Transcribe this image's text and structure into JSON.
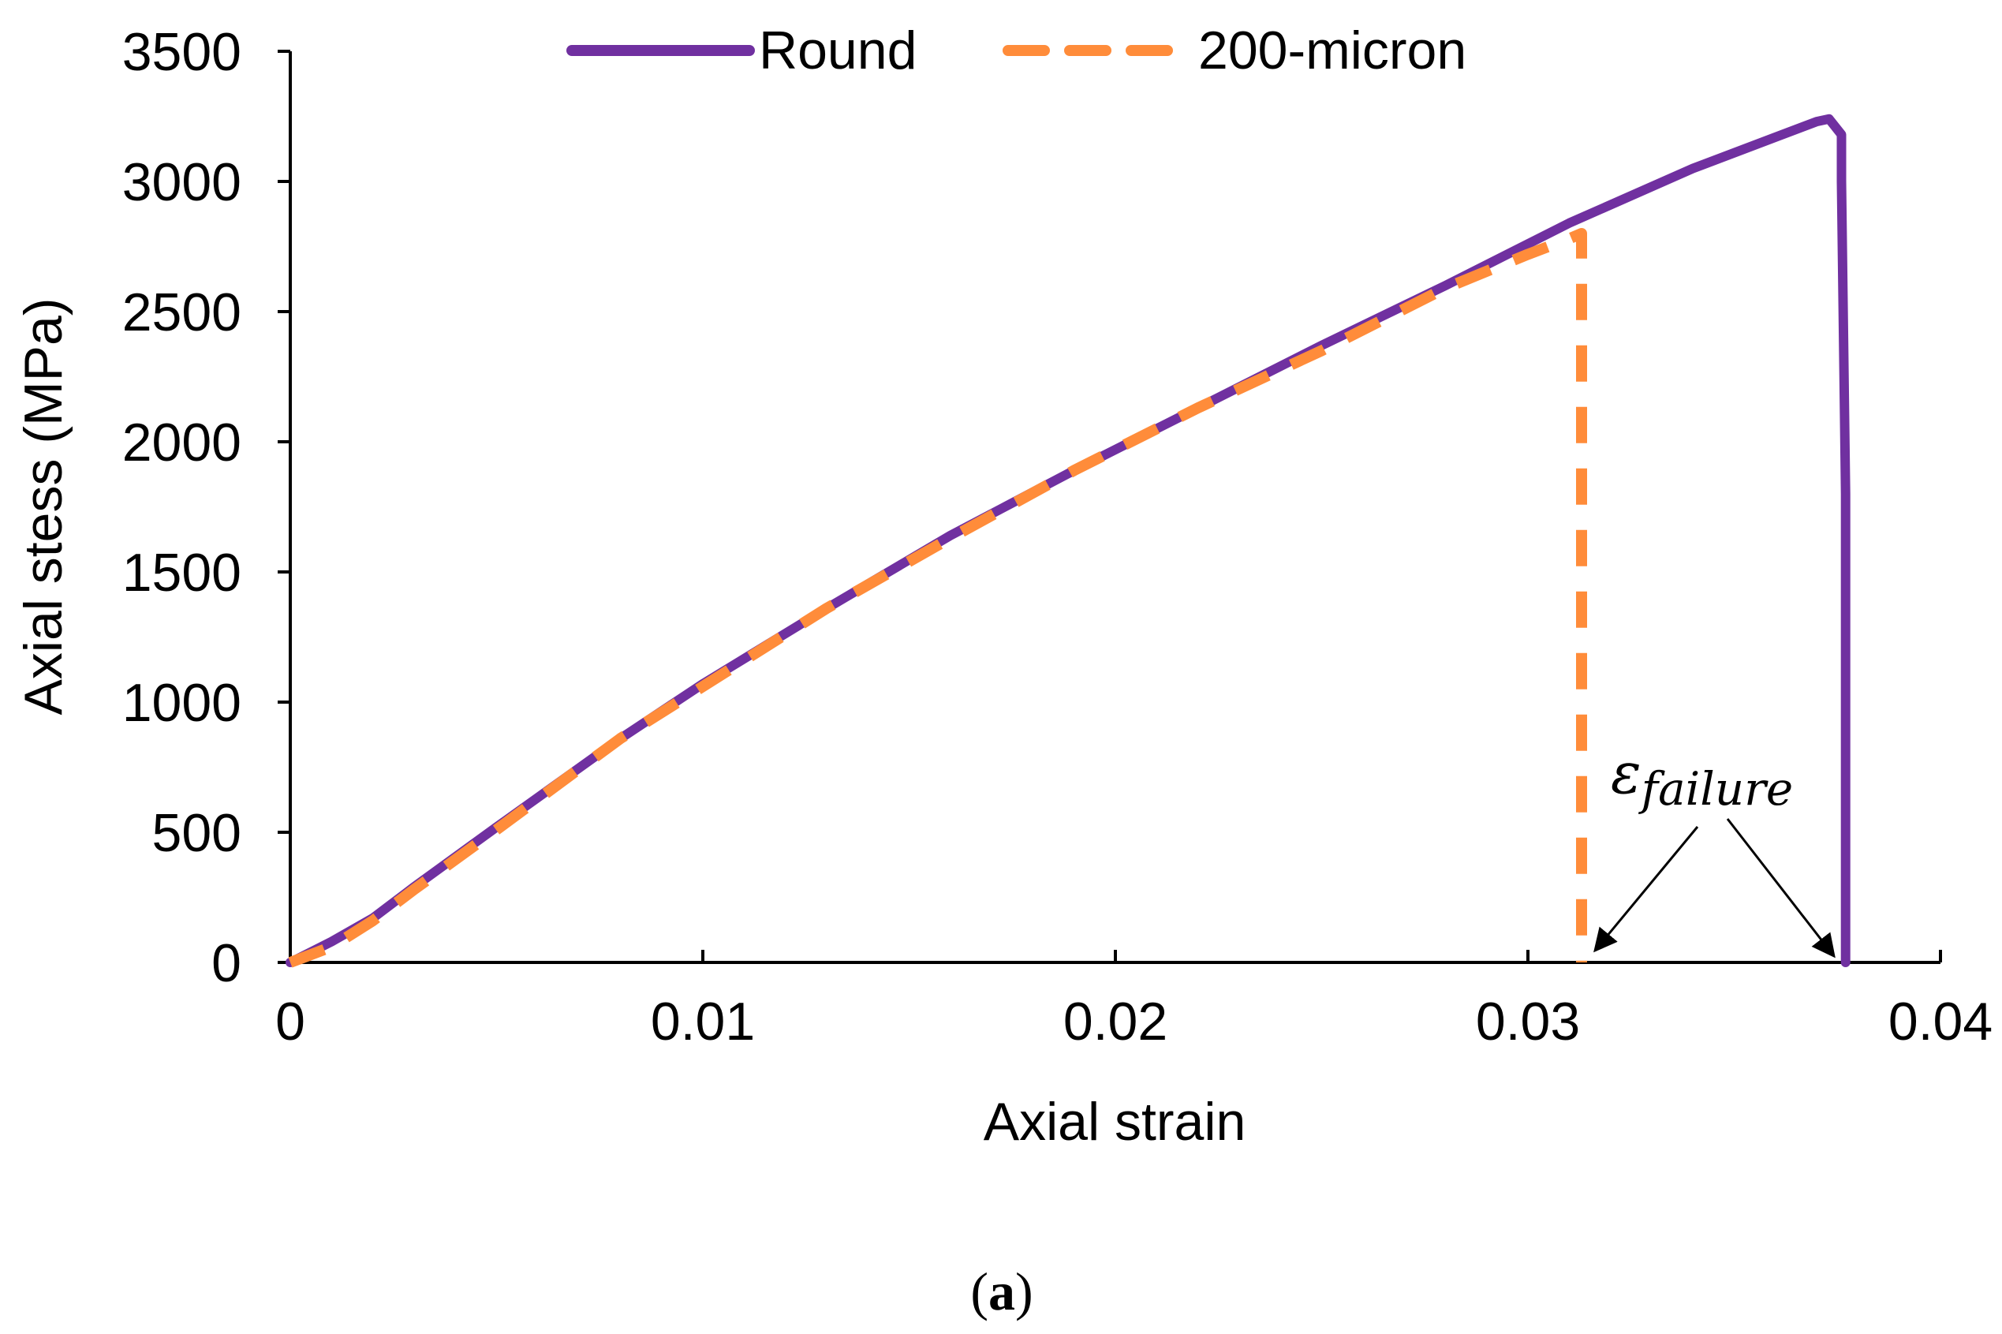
{
  "chart_data": {
    "type": "line",
    "title": "",
    "xlabel": "Axial strain",
    "ylabel": "Axial stess (MPa)",
    "xlim": [
      0,
      0.04
    ],
    "ylim": [
      0,
      3500
    ],
    "x_ticks": [
      0,
      0.01,
      0.02,
      0.03,
      0.04
    ],
    "x_tick_labels": [
      "0",
      "0.01",
      "0.02",
      "0.03",
      "0.04"
    ],
    "y_ticks": [
      0,
      500,
      1000,
      1500,
      2000,
      2500,
      3000,
      3500
    ],
    "y_tick_labels": [
      "0",
      "500",
      "1000",
      "1500",
      "2000",
      "2500",
      "3000",
      "3500"
    ],
    "grid": false,
    "legend_position": "top",
    "series": [
      {
        "name": "Round",
        "color": "#7030A0",
        "style": "solid",
        "x": [
          0,
          0.001,
          0.002,
          0.003,
          0.005,
          0.008,
          0.01,
          0.013,
          0.016,
          0.019,
          0.022,
          0.025,
          0.028,
          0.031,
          0.034,
          0.036,
          0.037,
          0.0373,
          0.0376,
          0.0376,
          0.0377,
          0.0377
        ],
        "y": [
          0,
          80,
          170,
          290,
          520,
          860,
          1070,
          1360,
          1640,
          1890,
          2130,
          2370,
          2600,
          2840,
          3050,
          3170,
          3230,
          3240,
          3180,
          3000,
          1800,
          0
        ]
      },
      {
        "name": "200-micron",
        "color": "#FF8C3A",
        "style": "dashed",
        "x": [
          0,
          0.001,
          0.002,
          0.003,
          0.005,
          0.008,
          0.01,
          0.013,
          0.016,
          0.019,
          0.022,
          0.025,
          0.028,
          0.03,
          0.031,
          0.0313,
          0.0313,
          0.0313
        ],
        "y": [
          0,
          60,
          160,
          280,
          510,
          860,
          1060,
          1360,
          1630,
          1890,
          2130,
          2350,
          2590,
          2720,
          2780,
          2800,
          1500,
          0
        ]
      }
    ],
    "annotations": [
      {
        "text": "ε",
        "subscript": "failure",
        "points_to": [
          {
            "x": 0.0313,
            "y": 0
          },
          {
            "x": 0.0377,
            "y": 0
          }
        ]
      }
    ]
  },
  "caption": {
    "open": "(",
    "label": "a",
    "close": ")"
  }
}
